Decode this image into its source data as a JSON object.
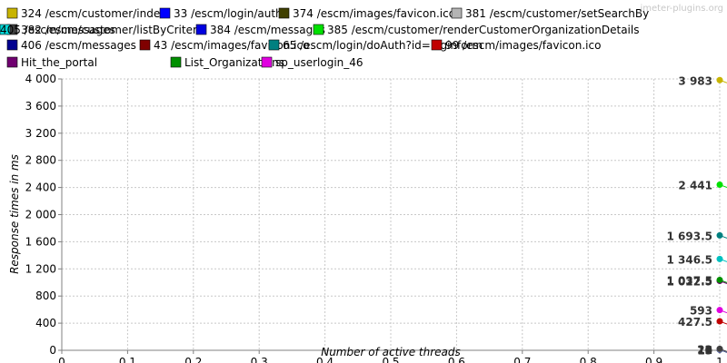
{
  "watermark": "jmeter-plugins.org",
  "chart_data": {
    "type": "line",
    "xlabel": "Number of active threads",
    "ylabel": "Response times in ms",
    "xlim": [
      0,
      1
    ],
    "ylim": [
      0,
      4000
    ],
    "x_ticks": [
      0,
      0.1,
      0.2,
      0.3,
      0.4,
      0.5,
      0.6,
      0.7,
      0.8,
      0.9,
      1
    ],
    "x_tick_labels": [
      "0",
      "0.1",
      "0.2",
      "0.3",
      "0.4",
      "0.5",
      "0.6",
      "0.7",
      "0.8",
      "0.9",
      "1"
    ],
    "y_ticks": [
      0,
      400,
      800,
      1200,
      1600,
      2000,
      2400,
      2800,
      3200,
      3600,
      4000
    ],
    "y_tick_labels": [
      "0",
      "400",
      "800",
      "1 200",
      "1 600",
      "2 000",
      "2 400",
      "2 800",
      "3 200",
      "3 600",
      "4 000"
    ],
    "grid": true,
    "legend_position": "top",
    "series": [
      {
        "name": "324 /escm/customer/index",
        "color": "#c8b400",
        "x": [
          1
        ],
        "y": [
          3983
        ],
        "label": "3 983"
      },
      {
        "name": "33 /escm/login/auth",
        "color": "#0000ff",
        "x": [
          1
        ],
        "y": [
          15
        ],
        "label": "15"
      },
      {
        "name": "374 /escm/images/favicon.ico",
        "color": "#404000",
        "x": [
          1
        ],
        "y": [
          10
        ],
        "label": "10"
      },
      {
        "name": "381 /escm/customer/setSearchBy",
        "color": "#b4b4b4",
        "x": [
          1
        ],
        "y": [
          16
        ],
        "label": "16"
      },
      {
        "name": "382 /escm/customer/listByCriteria",
        "color": "#404040",
        "x": [
          1
        ],
        "y": [
          22
        ],
        "label": "22"
      },
      {
        "name": "384 /escm/messages",
        "color": "#0000e0",
        "x": [
          1
        ],
        "y": [
          9
        ],
        "label": "9"
      },
      {
        "name": "385 /escm/customer/renderCustomerOrganizationDetails",
        "color": "#00e000",
        "x": [
          1
        ],
        "y": [
          2441
        ],
        "label": "2 441"
      },
      {
        "name": "405 /escm/messages",
        "color": "#00d8d8",
        "x": [
          1
        ],
        "y": [
          12
        ],
        "label": "12"
      },
      {
        "name": "406 /escm/messages",
        "color": "#000090",
        "x": [
          1
        ],
        "y": [
          11
        ],
        "label": "11"
      },
      {
        "name": "43 /escm/images/favicon.ico",
        "color": "#800000",
        "x": [
          1
        ],
        "y": [
          13
        ],
        "label": "13"
      },
      {
        "name": "65 /escm/login/doAuth?id=loginform",
        "color": "#008080",
        "x": [
          1
        ],
        "y": [
          1693.5
        ],
        "label": "1 693.5"
      },
      {
        "name": "99 /escm/images/favicon.ico",
        "color": "#c00000",
        "x": [
          1
        ],
        "y": [
          427.5
        ],
        "label": "427.5"
      },
      {
        "name": "Hit_the_portal",
        "color": "#700070",
        "x": [
          1
        ],
        "y": [
          1022.5
        ],
        "label": "1 022.5"
      },
      {
        "name": "List_Organizations",
        "color": "#009000",
        "x": [
          1
        ],
        "y": [
          1037.5
        ],
        "label": "1 037.5"
      },
      {
        "name": "sp_userlogin_46",
        "color": "#e000e0",
        "x": [
          1
        ],
        "y": [
          593
        ],
        "label": "593"
      }
    ],
    "extra_points": [
      {
        "x": 1,
        "y": 1346.5,
        "label": "1 346.5",
        "color": "#00c0c0"
      }
    ]
  }
}
